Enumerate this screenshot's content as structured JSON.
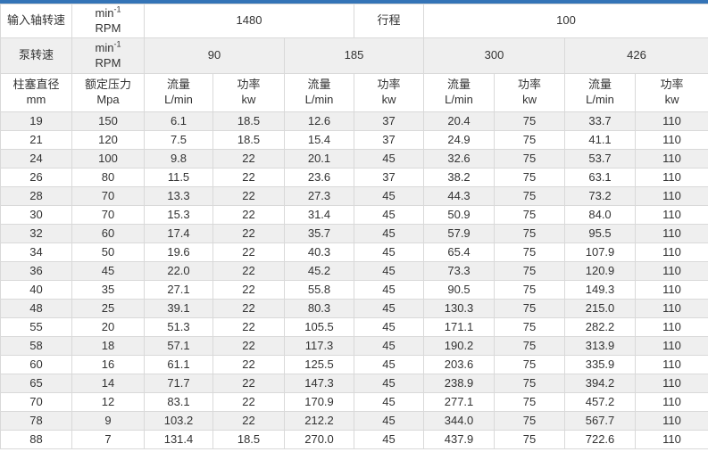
{
  "accent_color": "#3474b7",
  "row_alt_color": "#efefef",
  "border_color": "#d9d9d9",
  "text_color": "#333333",
  "chart_data": {
    "type": "table",
    "title": "",
    "header": {
      "input_shaft_speed_label": "输入轴转速",
      "unit_min": "min",
      "unit_sup": "-1",
      "unit_rpm": "RPM",
      "input_shaft_speed_value": "1480",
      "stroke_label": "行程",
      "stroke_value": "100",
      "pump_speed_label": "泵转速",
      "pump_speeds": [
        "90",
        "185",
        "300",
        "426"
      ],
      "plunger_diameter_line1": "柱塞直径",
      "plunger_diameter_line2": "mm",
      "rated_pressure_line1": "额定压力",
      "rated_pressure_line2": "Mpa",
      "flow_line1": "流量",
      "flow_line2": "L/min",
      "power_line1": "功率",
      "power_line2": "kw"
    },
    "columns": [
      "柱塞直径 mm",
      "额定压力 Mpa",
      "流量 L/min @90",
      "功率 kw @90",
      "流量 L/min @185",
      "功率 kw @185",
      "流量 L/min @300",
      "功率 kw @300",
      "流量 L/min @426",
      "功率 kw @426"
    ],
    "rows": [
      [
        "19",
        "150",
        "6.1",
        "18.5",
        "12.6",
        "37",
        "20.4",
        "75",
        "33.7",
        "110"
      ],
      [
        "21",
        "120",
        "7.5",
        "18.5",
        "15.4",
        "37",
        "24.9",
        "75",
        "41.1",
        "110"
      ],
      [
        "24",
        "100",
        "9.8",
        "22",
        "20.1",
        "45",
        "32.6",
        "75",
        "53.7",
        "110"
      ],
      [
        "26",
        "80",
        "11.5",
        "22",
        "23.6",
        "37",
        "38.2",
        "75",
        "63.1",
        "110"
      ],
      [
        "28",
        "70",
        "13.3",
        "22",
        "27.3",
        "45",
        "44.3",
        "75",
        "73.2",
        "110"
      ],
      [
        "30",
        "70",
        "15.3",
        "22",
        "31.4",
        "45",
        "50.9",
        "75",
        "84.0",
        "110"
      ],
      [
        "32",
        "60",
        "17.4",
        "22",
        "35.7",
        "45",
        "57.9",
        "75",
        "95.5",
        "110"
      ],
      [
        "34",
        "50",
        "19.6",
        "22",
        "40.3",
        "45",
        "65.4",
        "75",
        "107.9",
        "110"
      ],
      [
        "36",
        "45",
        "22.0",
        "22",
        "45.2",
        "45",
        "73.3",
        "75",
        "120.9",
        "110"
      ],
      [
        "40",
        "35",
        "27.1",
        "22",
        "55.8",
        "45",
        "90.5",
        "75",
        "149.3",
        "110"
      ],
      [
        "48",
        "25",
        "39.1",
        "22",
        "80.3",
        "45",
        "130.3",
        "75",
        "215.0",
        "110"
      ],
      [
        "55",
        "20",
        "51.3",
        "22",
        "105.5",
        "45",
        "171.1",
        "75",
        "282.2",
        "110"
      ],
      [
        "58",
        "18",
        "57.1",
        "22",
        "117.3",
        "45",
        "190.2",
        "75",
        "313.9",
        "110"
      ],
      [
        "60",
        "16",
        "61.1",
        "22",
        "125.5",
        "45",
        "203.6",
        "75",
        "335.9",
        "110"
      ],
      [
        "65",
        "14",
        "71.7",
        "22",
        "147.3",
        "45",
        "238.9",
        "75",
        "394.2",
        "110"
      ],
      [
        "70",
        "12",
        "83.1",
        "22",
        "170.9",
        "45",
        "277.1",
        "75",
        "457.2",
        "110"
      ],
      [
        "78",
        "9",
        "103.2",
        "22",
        "212.2",
        "45",
        "344.0",
        "75",
        "567.7",
        "110"
      ],
      [
        "88",
        "7",
        "131.4",
        "18.5",
        "270.0",
        "45",
        "437.9",
        "75",
        "722.6",
        "110"
      ]
    ]
  }
}
